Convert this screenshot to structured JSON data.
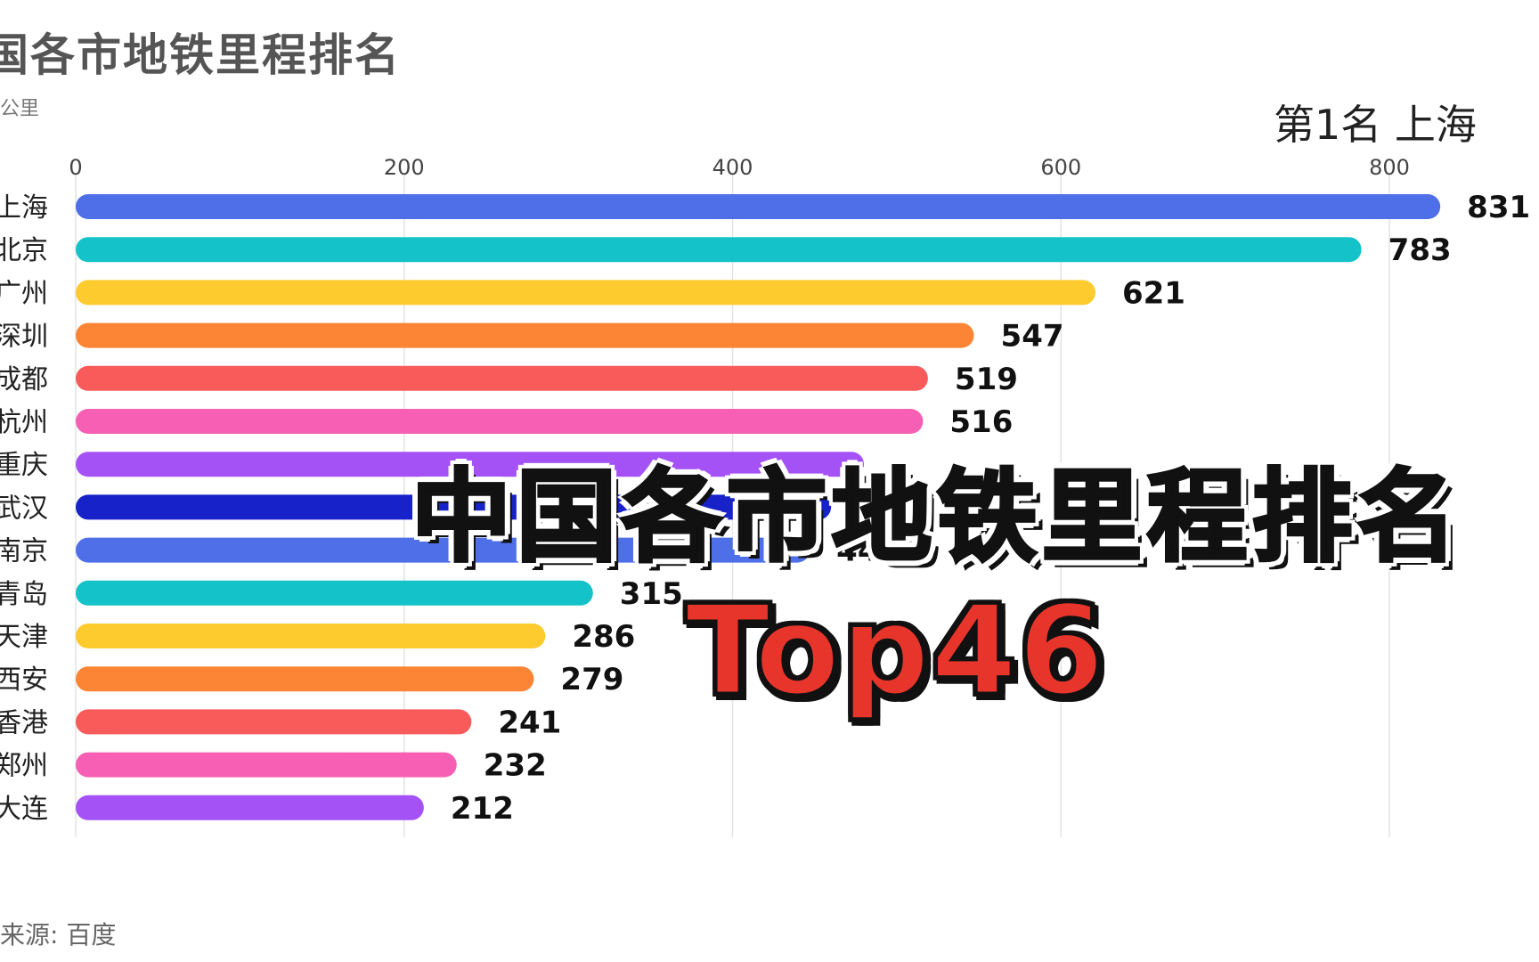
{
  "header": {
    "title": "国各市地铁里程排名",
    "unit": "公里",
    "rank_text": "第1名 上海",
    "source": "来源: 百度"
  },
  "overlay": {
    "headline": "中国各市地铁里程排名",
    "subline": "Top46"
  },
  "chart_data": {
    "type": "bar",
    "orientation": "horizontal",
    "title": "国各市地铁里程排名",
    "unit": "公里",
    "xlim": [
      0,
      840
    ],
    "ticks": [
      0,
      200,
      400,
      600,
      800
    ],
    "grid": true,
    "categories": [
      "上海",
      "北京",
      "广州",
      "深圳",
      "成都",
      "杭州",
      "重庆",
      "武汉",
      "南京",
      "青岛",
      "天津",
      "西安",
      "香港",
      "郑州",
      "大连"
    ],
    "values": [
      831,
      783,
      621,
      547,
      519,
      516,
      480,
      460,
      447,
      315,
      286,
      279,
      241,
      232,
      212
    ],
    "value_labels": [
      "831",
      "783",
      "621",
      "547",
      "519",
      "516",
      "",
      "",
      "447",
      "315",
      "286",
      "279",
      "241",
      "232",
      "212"
    ],
    "colors": [
      "#4f6fe8",
      "#14c3c9",
      "#fdcb2e",
      "#fb8534",
      "#f95b5b",
      "#f65fb4",
      "#a452f5",
      "#1722c8",
      "#4f6fe8",
      "#14c3c9",
      "#fdcb2e",
      "#fb8534",
      "#f95b5b",
      "#f65fb4",
      "#a452f5"
    ]
  }
}
